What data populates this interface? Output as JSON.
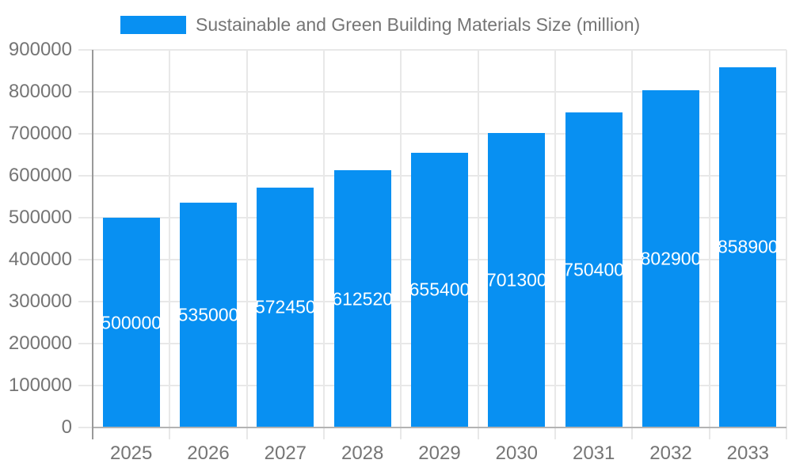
{
  "legend": {
    "label": "Sustainable and Green Building Materials Size (million)"
  },
  "chart_data": {
    "type": "bar",
    "title": "Sustainable and Green Building Materials Size (million)",
    "categories": [
      "2025",
      "2026",
      "2027",
      "2028",
      "2029",
      "2030",
      "2031",
      "2032",
      "2033"
    ],
    "values": [
      500000,
      535000,
      572450,
      612520,
      655400,
      701300,
      750400,
      802900,
      858900
    ],
    "value_labels": [
      "500000",
      "535000",
      "572450",
      "612520",
      "655400",
      "701300",
      "750400",
      "802900",
      "858900"
    ],
    "xlabel": "",
    "ylabel": "",
    "ylim": [
      0,
      900000
    ],
    "ytick_step": 100000,
    "ytick_labels": [
      "0",
      "100000",
      "200000",
      "300000",
      "400000",
      "500000",
      "600000",
      "700000",
      "800000",
      "900000"
    ],
    "grid": true,
    "legend_position": "top",
    "colors": {
      "bar": "#0890F2",
      "value_label": "#ffffff",
      "tick_label": "#757575",
      "grid_line": "#e8e8e8",
      "y_axis_line": "#999999",
      "x_baseline": "#b3b3b3"
    }
  }
}
